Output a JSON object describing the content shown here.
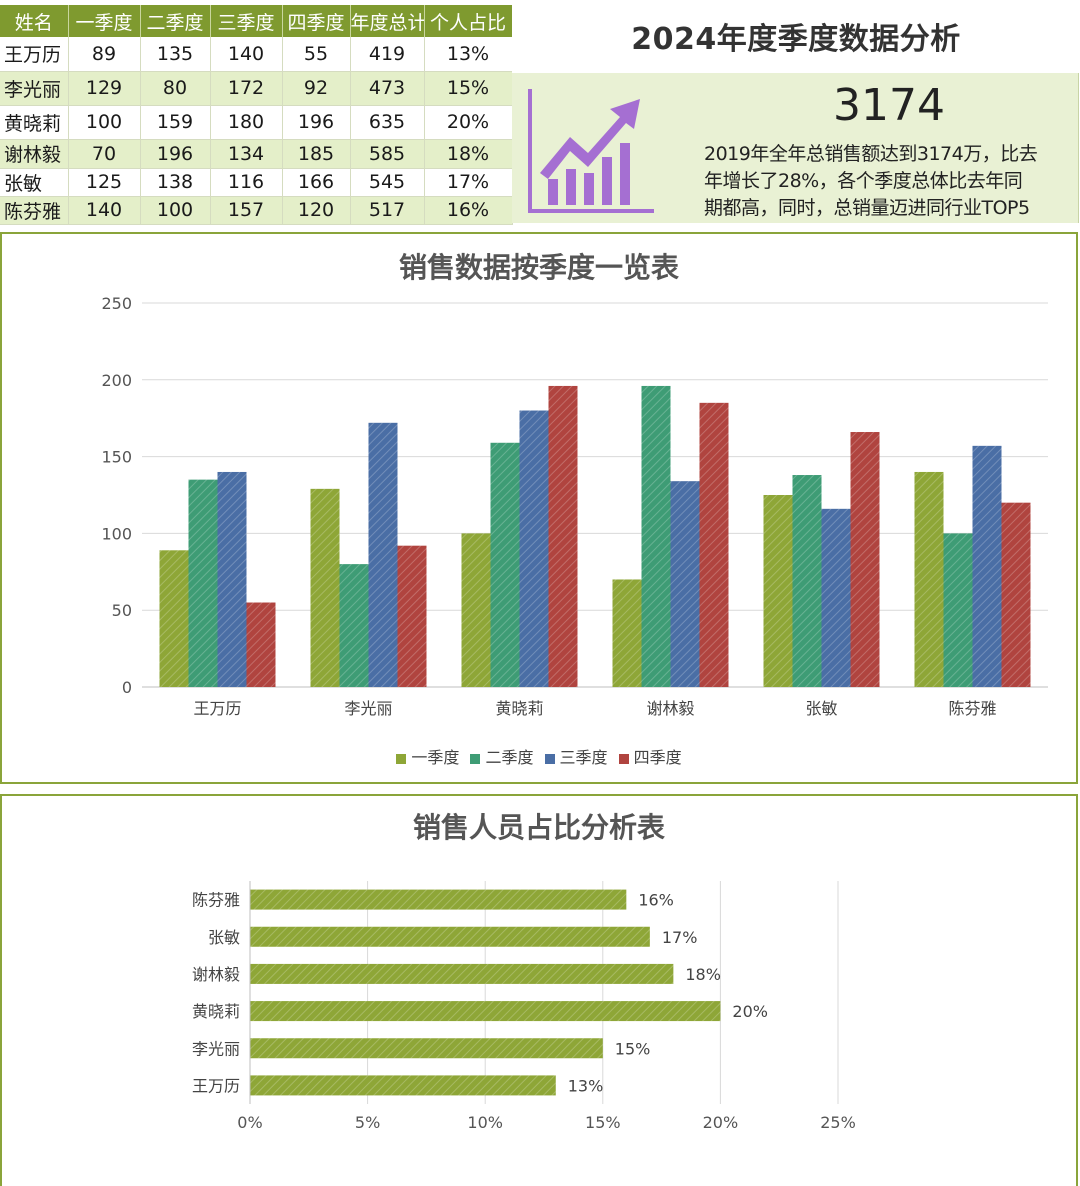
{
  "table": {
    "headers": [
      "姓名",
      "一季度",
      "二季度",
      "三季度",
      "四季度",
      "年度总计",
      "个人占比"
    ],
    "rows": [
      {
        "name": "王万历",
        "q1": "89",
        "q2": "135",
        "q3": "140",
        "q4": "55",
        "total": "419",
        "share": "13%"
      },
      {
        "name": "李光丽",
        "q1": "129",
        "q2": "80",
        "q3": "172",
        "q4": "92",
        "total": "473",
        "share": "15%"
      },
      {
        "name": "黄晓莉",
        "q1": "100",
        "q2": "159",
        "q3": "180",
        "q4": "196",
        "total": "635",
        "share": "20%"
      },
      {
        "name": "谢林毅",
        "q1": "70",
        "q2": "196",
        "q3": "134",
        "q4": "185",
        "total": "585",
        "share": "18%"
      },
      {
        "name": "张敏",
        "q1": "125",
        "q2": "138",
        "q3": "116",
        "q4": "166",
        "total": "545",
        "share": "17%"
      },
      {
        "name": "陈芬雅",
        "q1": "140",
        "q2": "100",
        "q3": "157",
        "q4": "120",
        "total": "517",
        "share": "16%"
      }
    ]
  },
  "summary": {
    "title": "2024年度季度数据分析",
    "big_number": "3174",
    "text": "2019年全年总销售额达到3174万，比去\n年增长了28%，各个季度总体比去年同\n期都高，同时，总销量迈进同行业TOP5",
    "icon": "growth-chart-icon",
    "icon_color": "#a56fd2"
  },
  "colors": {
    "accent": "#7f9a2f",
    "q1": "#8ea637",
    "q2": "#3e9c75",
    "q3": "#4a6ea5",
    "q4": "#b0443f",
    "share_bar": "#8ea637"
  },
  "chart_data": [
    {
      "type": "bar",
      "title": "销售数据按季度一览表",
      "categories": [
        "王万历",
        "李光丽",
        "黄晓莉",
        "谢林毅",
        "张敏",
        "陈芬雅"
      ],
      "series": [
        {
          "name": "一季度",
          "values": [
            89,
            129,
            100,
            70,
            125,
            140
          ]
        },
        {
          "name": "二季度",
          "values": [
            135,
            80,
            159,
            196,
            138,
            100
          ]
        },
        {
          "name": "三季度",
          "values": [
            140,
            172,
            180,
            134,
            116,
            157
          ]
        },
        {
          "name": "四季度",
          "values": [
            55,
            92,
            196,
            185,
            166,
            120
          ]
        }
      ],
      "ylim": [
        0,
        250
      ],
      "yticks": [
        0,
        50,
        100,
        150,
        200,
        250
      ],
      "grid": true,
      "legend": "bottom"
    },
    {
      "type": "bar",
      "orientation": "horizontal",
      "title": "销售人员占比分析表",
      "categories": [
        "陈芬雅",
        "张敏",
        "谢林毅",
        "黄晓莉",
        "李光丽",
        "王万历"
      ],
      "values": [
        0.16,
        0.17,
        0.18,
        0.2,
        0.15,
        0.13
      ],
      "data_labels": [
        "16%",
        "17%",
        "18%",
        "20%",
        "15%",
        "13%"
      ],
      "xlim": [
        0,
        0.25
      ],
      "xticks": [
        "0%",
        "5%",
        "10%",
        "15%",
        "20%",
        "25%"
      ],
      "grid": true
    }
  ]
}
